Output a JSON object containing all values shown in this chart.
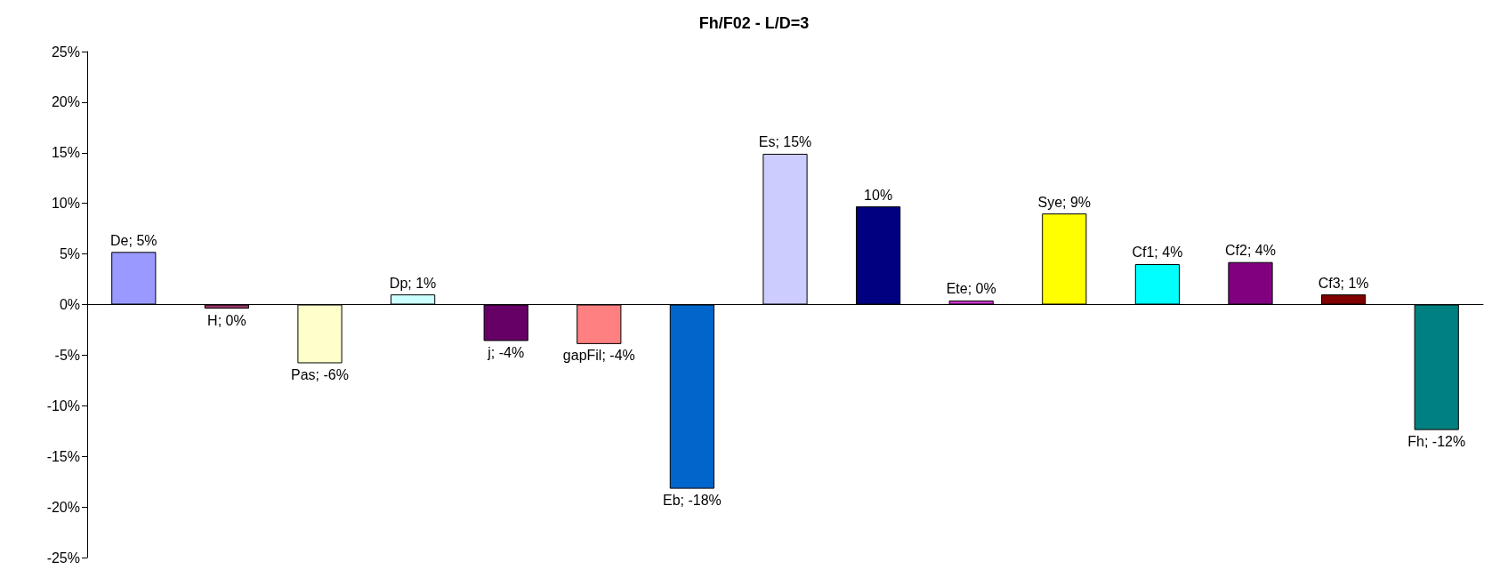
{
  "chart_data": {
    "type": "bar",
    "title": "Fh/F02 - L/D=3",
    "categories": [
      null,
      null,
      null,
      null,
      null,
      null,
      null,
      null,
      null,
      null,
      null,
      null,
      null,
      null,
      null
    ],
    "values": [
      5.2,
      -0.4,
      -5.8,
      1.0,
      -3.6,
      -3.9,
      -18.2,
      14.9,
      9.7,
      0.4,
      9.0,
      4.0,
      4.2,
      1.0,
      -12.4
    ],
    "value_labels": [
      "De; 5%",
      "H; 0%",
      "Pas; -6%",
      "Dp; 1%",
      "j; -4%",
      "gapFil; -4%",
      "Eb; -18%",
      "Es; 15%",
      "10%",
      "Ete; 0%",
      "Sye; 9%",
      "Cf1; 4%",
      "Cf2; 4%",
      "Cf3; 1%",
      "Fh; -12%"
    ],
    "colors": [
      "#9999ff",
      "#993366",
      "#ffffcc",
      "#ccffff",
      "#660066",
      "#ff8080",
      "#0066cc",
      "#ccccff",
      "#000080",
      "#cc33cc",
      "#ffff00",
      "#00ffff",
      "#800080",
      "#800000",
      "#008080"
    ],
    "ylim": [
      -25,
      25
    ],
    "yticks": [
      {
        "value": -25,
        "label": "-25%"
      },
      {
        "value": -20,
        "label": "-20%"
      },
      {
        "value": -15,
        "label": "-15%"
      },
      {
        "value": -10,
        "label": "-10%"
      },
      {
        "value": -5,
        "label": "-5%"
      },
      {
        "value": 0,
        "label": "0%"
      },
      {
        "value": 5,
        "label": "5%"
      },
      {
        "value": 10,
        "label": "10%"
      },
      {
        "value": 15,
        "label": "15%"
      },
      {
        "value": 20,
        "label": "20%"
      },
      {
        "value": 25,
        "label": "25%"
      }
    ],
    "tick_labels": "y"
  }
}
